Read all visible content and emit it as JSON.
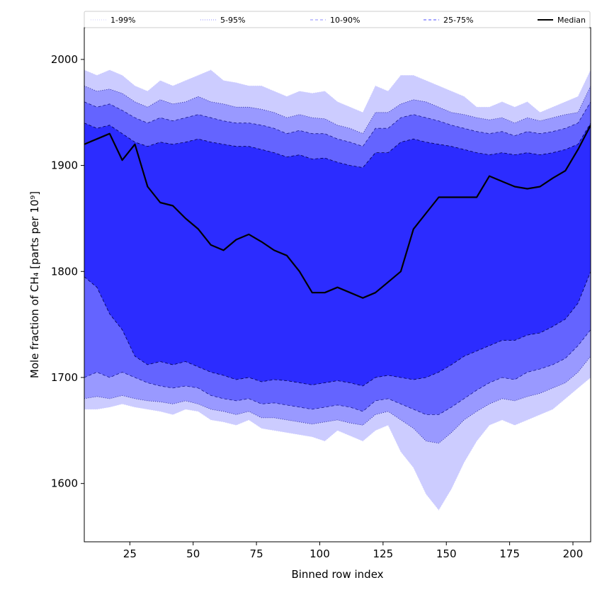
{
  "chart_data": {
    "type": "area",
    "title": "",
    "xlabel": "Binned row index",
    "ylabel": "Mole fraction of CH₄ [parts per 10⁹]",
    "xlim": [
      7,
      207
    ],
    "ylim": [
      1545,
      2030
    ],
    "x_ticks": [
      25,
      50,
      75,
      100,
      125,
      150,
      175,
      200
    ],
    "y_ticks": [
      1600,
      1700,
      1800,
      1900,
      2000
    ],
    "grid": false,
    "legend_position": "top, above plot",
    "legend": [
      {
        "label": "1-99%",
        "style": "dotted",
        "color": "#ccccff"
      },
      {
        "label": "5-95%",
        "style": "dotted",
        "color": "#8c8cff"
      },
      {
        "label": "10-90%",
        "style": "dashed",
        "color": "#8c8cff"
      },
      {
        "label": "25-75%",
        "style": "dashed",
        "color": "#4c4cff"
      },
      {
        "label": "Median",
        "style": "solid",
        "color": "#000000"
      }
    ],
    "band_colors": {
      "p1_99": "#ccccff",
      "p5_95": "#9999ff",
      "p10_90": "#6464ff",
      "p25_75": "#2c2cff"
    },
    "x": [
      7,
      12,
      17,
      22,
      27,
      32,
      37,
      42,
      47,
      52,
      57,
      62,
      67,
      72,
      77,
      82,
      87,
      92,
      97,
      102,
      107,
      112,
      117,
      122,
      127,
      132,
      137,
      142,
      147,
      152,
      157,
      162,
      167,
      172,
      177,
      182,
      187,
      192,
      197,
      202,
      207
    ],
    "series": [
      {
        "name": "1-99%",
        "role": "band",
        "upper": [
          1990,
          1985,
          1990,
          1985,
          1975,
          1970,
          1980,
          1975,
          1980,
          1985,
          1990,
          1980,
          1978,
          1975,
          1975,
          1970,
          1965,
          1970,
          1968,
          1970,
          1960,
          1955,
          1950,
          1975,
          1970,
          1985,
          1985,
          1980,
          1975,
          1970,
          1965,
          1955,
          1955,
          1960,
          1955,
          1960,
          1950,
          1955,
          1960,
          1965,
          1990
        ],
        "lower": [
          1670,
          1670,
          1672,
          1675,
          1672,
          1670,
          1668,
          1665,
          1670,
          1668,
          1660,
          1658,
          1655,
          1660,
          1652,
          1650,
          1648,
          1646,
          1644,
          1640,
          1650,
          1645,
          1640,
          1650,
          1655,
          1630,
          1615,
          1590,
          1575,
          1595,
          1620,
          1640,
          1655,
          1660,
          1655,
          1660,
          1665,
          1670,
          1680,
          1690,
          1700
        ]
      },
      {
        "name": "5-95%",
        "role": "band",
        "upper": [
          1975,
          1970,
          1972,
          1968,
          1960,
          1955,
          1962,
          1958,
          1960,
          1965,
          1960,
          1958,
          1955,
          1955,
          1953,
          1950,
          1945,
          1948,
          1945,
          1944,
          1938,
          1935,
          1930,
          1950,
          1950,
          1958,
          1962,
          1960,
          1955,
          1950,
          1948,
          1945,
          1943,
          1945,
          1940,
          1945,
          1942,
          1945,
          1948,
          1950,
          1975
        ],
        "lower": [
          1680,
          1682,
          1680,
          1683,
          1680,
          1678,
          1677,
          1675,
          1678,
          1675,
          1670,
          1668,
          1665,
          1668,
          1662,
          1662,
          1660,
          1658,
          1656,
          1658,
          1660,
          1657,
          1655,
          1665,
          1668,
          1660,
          1652,
          1640,
          1638,
          1648,
          1660,
          1668,
          1675,
          1680,
          1678,
          1682,
          1685,
          1690,
          1695,
          1705,
          1720
        ]
      },
      {
        "name": "10-90%",
        "role": "band",
        "upper": [
          1960,
          1955,
          1958,
          1952,
          1945,
          1940,
          1945,
          1942,
          1945,
          1948,
          1945,
          1942,
          1940,
          1940,
          1938,
          1935,
          1930,
          1933,
          1930,
          1930,
          1925,
          1922,
          1918,
          1935,
          1935,
          1945,
          1948,
          1945,
          1942,
          1938,
          1935,
          1932,
          1930,
          1932,
          1928,
          1932,
          1930,
          1932,
          1935,
          1940,
          1960
        ],
        "lower": [
          1700,
          1705,
          1700,
          1705,
          1700,
          1695,
          1692,
          1690,
          1692,
          1690,
          1683,
          1680,
          1678,
          1680,
          1675,
          1676,
          1674,
          1672,
          1670,
          1672,
          1674,
          1672,
          1668,
          1678,
          1680,
          1675,
          1670,
          1665,
          1665,
          1672,
          1680,
          1688,
          1695,
          1700,
          1698,
          1705,
          1708,
          1712,
          1718,
          1730,
          1745
        ]
      },
      {
        "name": "25-75%",
        "role": "band",
        "upper": [
          1940,
          1935,
          1938,
          1930,
          1922,
          1918,
          1922,
          1920,
          1922,
          1925,
          1922,
          1920,
          1918,
          1918,
          1915,
          1912,
          1908,
          1910,
          1906,
          1907,
          1903,
          1900,
          1898,
          1912,
          1912,
          1922,
          1925,
          1922,
          1920,
          1918,
          1915,
          1912,
          1910,
          1912,
          1910,
          1912,
          1910,
          1912,
          1915,
          1920,
          1940
        ],
        "lower": [
          1795,
          1785,
          1760,
          1745,
          1720,
          1712,
          1715,
          1712,
          1715,
          1710,
          1705,
          1702,
          1698,
          1700,
          1696,
          1698,
          1697,
          1695,
          1693,
          1695,
          1697,
          1695,
          1692,
          1700,
          1702,
          1700,
          1698,
          1700,
          1705,
          1712,
          1720,
          1725,
          1730,
          1735,
          1735,
          1740,
          1742,
          1748,
          1755,
          1770,
          1800
        ]
      },
      {
        "name": "Median",
        "role": "line",
        "values": [
          1920,
          1925,
          1930,
          1905,
          1920,
          1880,
          1865,
          1862,
          1850,
          1840,
          1825,
          1820,
          1830,
          1835,
          1828,
          1820,
          1815,
          1800,
          1780,
          1780,
          1785,
          1780,
          1775,
          1780,
          1790,
          1800,
          1840,
          1855,
          1870,
          1870,
          1870,
          1870,
          1890,
          1885,
          1880,
          1878,
          1880,
          1888,
          1895,
          1915,
          1938
        ]
      }
    ]
  }
}
